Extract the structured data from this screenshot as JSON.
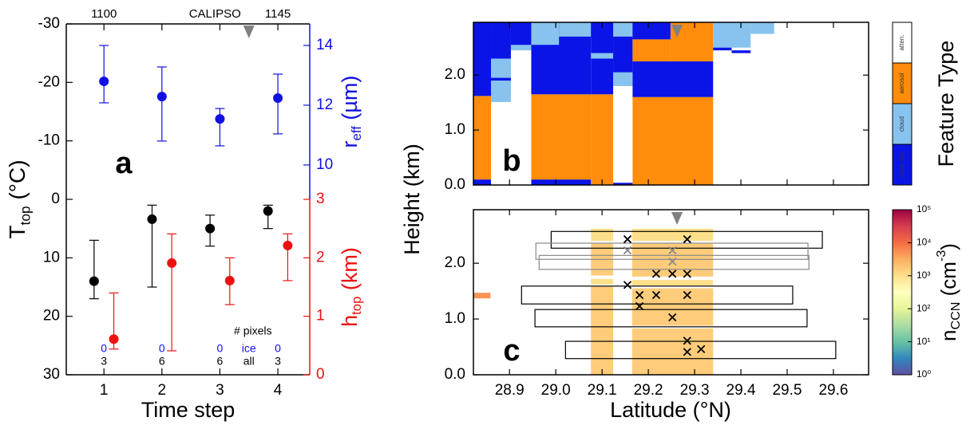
{
  "chart_data": [
    {
      "type": "errorbar",
      "label": "a",
      "xlabel": "Time step",
      "xlim": [
        0.35,
        4.55
      ],
      "xticks": [
        1,
        2,
        3,
        4
      ],
      "ylabel": [
        {
          "text": "T"
        },
        {
          "text": "top",
          "sub": true
        },
        {
          "text": " (°C)"
        }
      ],
      "ylim": [
        -30,
        30
      ],
      "yticks": [
        -30,
        -20,
        -10,
        0,
        10,
        20,
        30
      ],
      "y_inverted": true,
      "y2label": [
        {
          "text": "r"
        },
        {
          "text": "eff",
          "sub": true
        },
        {
          "text": " (µm)"
        }
      ],
      "y2lim": [
        8.85,
        14.72
      ],
      "y2ticks": [
        10,
        12,
        14
      ],
      "y2color": "#1010e0",
      "y3label": [
        {
          "text": "h"
        },
        {
          "text": "top",
          "sub": true
        },
        {
          "text": " (km)"
        }
      ],
      "y3lim": [
        0,
        3
      ],
      "y3ticks": [
        0,
        1,
        2,
        3
      ],
      "y3color": "#ee1111",
      "series": [
        {
          "axis": "y",
          "color": "#000000",
          "x": [
            0.83,
            1.83,
            2.83,
            3.83
          ],
          "values": [
            14,
            3.4,
            5,
            2
          ],
          "min": [
            7,
            1,
            2.7,
            1
          ],
          "max": [
            17,
            15,
            8,
            5
          ]
        },
        {
          "axis": "y2",
          "color": "#1010e0",
          "x": [
            1,
            2,
            3,
            4
          ],
          "values": [
            12.8,
            12.29,
            11.54,
            12.24
          ],
          "min": [
            12.08,
            10.8,
            10.64,
            11.04
          ],
          "max": [
            14.0,
            13.28,
            11.89,
            13.04
          ]
        },
        {
          "axis": "y3",
          "color": "#ee1111",
          "x": [
            1.17,
            2.17,
            3.17,
            4.17
          ],
          "values": [
            0.61,
            1.91,
            1.61,
            2.21
          ],
          "min": [
            0.44,
            0.41,
            1.2,
            1.61
          ],
          "max": [
            1.4,
            2.41,
            2.0,
            2.41
          ]
        }
      ],
      "top_labels": [
        {
          "text": "1100",
          "x": 1
        },
        {
          "text": "1145",
          "x": 4
        }
      ],
      "overpass": {
        "text": "CALIPSO",
        "x": 3.5
      },
      "pixel_counts": {
        "title": "# pixels",
        "ice_label": "ice",
        "all_label": "all",
        "ice": [
          0,
          0,
          0,
          0
        ],
        "all": [
          3,
          6,
          6,
          3
        ],
        "x": [
          1,
          2,
          3,
          4
        ],
        "label_x": 3.5
      }
    },
    {
      "type": "feature_mask",
      "label": "b",
      "ylabel": "Height (km)",
      "xlim": [
        28.822,
        29.676
      ],
      "ylim": [
        0,
        2.96
      ],
      "yticks": [
        {
          "value": 0,
          "label": "0.0"
        },
        {
          "value": 1,
          "label": "1.0"
        },
        {
          "value": 2,
          "label": "2.0"
        }
      ],
      "overpass_lat": 29.262,
      "feature_types": [
        {
          "name": "clear sky",
          "color": "#0a14e6"
        },
        {
          "name": "cloud",
          "color": "#87c3ee"
        },
        {
          "name": "aerosol",
          "color": "#ff8c0a"
        },
        {
          "name": "atten.",
          "color": "#ffffff"
        }
      ],
      "colorbar_title": "Feature Type",
      "cells": [
        {
          "lat": [
            28.822,
            28.86
          ],
          "h": [
            0,
            0.1
          ],
          "type": 0
        },
        {
          "lat": [
            28.822,
            28.86
          ],
          "h": [
            0.1,
            1.62
          ],
          "type": 2
        },
        {
          "lat": [
            28.822,
            28.86
          ],
          "h": [
            1.62,
            2.96
          ],
          "type": 0
        },
        {
          "lat": [
            28.86,
            28.903
          ],
          "h": [
            1.51,
            2.3
          ],
          "type": 1
        },
        {
          "lat": [
            28.86,
            28.903
          ],
          "h": [
            2.3,
            2.96
          ],
          "type": 0
        },
        {
          "lat": [
            28.86,
            28.903
          ],
          "h": [
            1.9,
            1.95
          ],
          "type": 0
        },
        {
          "lat": [
            28.903,
            28.947
          ],
          "h": [
            2.5,
            2.96
          ],
          "type": 0
        },
        {
          "lat": [
            28.903,
            28.947
          ],
          "h": [
            2.45,
            2.55
          ],
          "type": 1
        },
        {
          "lat": [
            28.947,
            29.076
          ],
          "h": [
            0,
            0.1
          ],
          "type": 0
        },
        {
          "lat": [
            28.947,
            29.076
          ],
          "h": [
            0.1,
            1.65
          ],
          "type": 2
        },
        {
          "lat": [
            28.947,
            29.076
          ],
          "h": [
            1.65,
            2.96
          ],
          "type": 0
        },
        {
          "lat": [
            28.947,
            29.007
          ],
          "h": [
            2.55,
            2.96
          ],
          "type": 1
        },
        {
          "lat": [
            29.007,
            29.076
          ],
          "h": [
            2.7,
            2.96
          ],
          "type": 1
        },
        {
          "lat": [
            29.076,
            29.124
          ],
          "h": [
            0,
            1.65
          ],
          "type": 2
        },
        {
          "lat": [
            29.076,
            29.124
          ],
          "h": [
            1.65,
            2.96
          ],
          "type": 0
        },
        {
          "lat": [
            29.076,
            29.124
          ],
          "h": [
            2.3,
            2.4
          ],
          "type": 1
        },
        {
          "lat": [
            29.124,
            29.166
          ],
          "h": [
            0,
            0.04
          ],
          "type": 0
        },
        {
          "lat": [
            29.124,
            29.166
          ],
          "h": [
            1.8,
            2.05
          ],
          "type": 1
        },
        {
          "lat": [
            29.124,
            29.166
          ],
          "h": [
            2.05,
            2.96
          ],
          "type": 0
        },
        {
          "lat": [
            29.124,
            29.166
          ],
          "h": [
            2.7,
            2.96
          ],
          "type": 1
        },
        {
          "lat": [
            29.166,
            29.34
          ],
          "h": [
            0,
            1.6
          ],
          "type": 2
        },
        {
          "lat": [
            29.166,
            29.34
          ],
          "h": [
            1.6,
            2.25
          ],
          "type": 0
        },
        {
          "lat": [
            29.166,
            29.248
          ],
          "h": [
            2.25,
            2.65
          ],
          "type": 2
        },
        {
          "lat": [
            29.166,
            29.248
          ],
          "h": [
            2.65,
            2.96
          ],
          "type": 0
        },
        {
          "lat": [
            29.248,
            29.34
          ],
          "h": [
            2.25,
            2.96
          ],
          "type": 2
        },
        {
          "lat": [
            29.34,
            29.421
          ],
          "h": [
            2.5,
            2.96
          ],
          "type": 1
        },
        {
          "lat": [
            29.421,
            29.472
          ],
          "h": [
            2.75,
            2.96
          ],
          "type": 1
        },
        {
          "lat": [
            29.34,
            29.38
          ],
          "h": [
            2.45,
            2.5
          ],
          "type": 0
        },
        {
          "lat": [
            29.38,
            29.421
          ],
          "h": [
            2.4,
            2.45
          ],
          "type": 0
        }
      ]
    },
    {
      "type": "ccn_profile",
      "label": "c",
      "xlabel": "Latitude (°N)",
      "xlim": [
        28.822,
        29.676
      ],
      "xticks": [
        28.9,
        {
          "value": 29,
          "label": "29.0"
        },
        29.1,
        29.2,
        29.3,
        29.4,
        29.5,
        29.6
      ],
      "ylim": [
        0,
        2.96
      ],
      "yticks": [
        {
          "value": 0,
          "label": "0.0"
        },
        {
          "value": 1,
          "label": "1.0"
        },
        {
          "value": 2,
          "label": "2.0"
        }
      ],
      "overpass_lat": 29.262,
      "colorbar_label": [
        {
          "text": "n"
        },
        {
          "text": "CCN",
          "sub": true
        },
        {
          "text": " (cm"
        },
        {
          "text": "-3",
          "sup": true
        },
        {
          "text": ")"
        }
      ],
      "clim": [
        1,
        100000
      ],
      "log": true,
      "cticks": [
        {
          "value": 1,
          "label": "10⁰"
        },
        {
          "value": 10,
          "label": "10¹"
        },
        {
          "value": 100,
          "label": "10²"
        },
        {
          "value": 1000,
          "label": "10³"
        },
        {
          "value": 10000,
          "label": "10⁴"
        },
        {
          "value": 100000,
          "label": "10⁵"
        }
      ],
      "colormap": [
        "#5e4fa2",
        "#3288bd",
        "#66c2a5",
        "#abdda4",
        "#e6f598",
        "#ffffbf",
        "#fee08b",
        "#fdae61",
        "#f46d43",
        "#d53e4f",
        "#9e0142"
      ],
      "cells": [
        {
          "lat": [
            28.822,
            28.859
          ],
          "h": [
            1.37,
            1.47
          ],
          "value": 5000
        },
        {
          "lat": [
            29.076,
            29.124
          ],
          "h": [
            0,
            1.58
          ],
          "value": 1600
        },
        {
          "lat": [
            29.076,
            29.124
          ],
          "h": [
            1.62,
            1.72
          ],
          "value": 1000
        },
        {
          "lat": [
            29.076,
            29.124
          ],
          "h": [
            1.78,
            2.35
          ],
          "value": 1600
        },
        {
          "lat": [
            29.076,
            29.124
          ],
          "h": [
            2.4,
            2.62
          ],
          "value": 1000
        },
        {
          "lat": [
            29.165,
            29.34
          ],
          "h": [
            0,
            0.83
          ],
          "value": 1600
        },
        {
          "lat": [
            29.165,
            29.34
          ],
          "h": [
            0.88,
            1.55
          ],
          "value": 1600
        },
        {
          "lat": [
            29.165,
            29.34
          ],
          "h": [
            1.6,
            1.7
          ],
          "value": 1000
        },
        {
          "lat": [
            29.165,
            29.34
          ],
          "h": [
            1.76,
            2.35
          ],
          "value": 1600
        },
        {
          "lat": [
            29.165,
            29.34
          ],
          "h": [
            2.4,
            2.62
          ],
          "value": 1000
        }
      ],
      "boxes": [
        {
          "lat": [
            28.99,
            29.576
          ],
          "h": [
            2.27,
            2.57
          ],
          "color": "#000000"
        },
        {
          "lat": [
            28.957,
            29.545
          ],
          "h": [
            2.07,
            2.36
          ],
          "color": "#888888"
        },
        {
          "lat": [
            28.964,
            29.547
          ],
          "h": [
            1.89,
            2.14
          ],
          "color": "#888888"
        },
        {
          "lat": [
            28.926,
            29.512
          ],
          "h": [
            1.27,
            1.59
          ],
          "color": "#000000"
        },
        {
          "lat": [
            28.955,
            29.543
          ],
          "h": [
            0.86,
            1.17
          ],
          "color": "#000000"
        },
        {
          "lat": [
            29.021,
            29.605
          ],
          "h": [
            0.29,
            0.6
          ],
          "color": "#000000"
        }
      ],
      "crosses": [
        {
          "color": "#000000",
          "lat": [
            29.155,
            29.284,
            29.217,
            29.252,
            29.284,
            29.155,
            29.181,
            29.217,
            29.284,
            29.181,
            29.252,
            29.284,
            29.314,
            29.284
          ],
          "h": [
            2.43,
            2.43,
            1.81,
            1.81,
            1.81,
            1.61,
            1.43,
            1.43,
            1.43,
            1.23,
            1.03,
            0.61,
            0.46,
            0.41
          ]
        },
        {
          "color": "#888888",
          "lat": [
            29.155,
            29.252,
            29.252
          ],
          "h": [
            2.23,
            2.23,
            2.03
          ]
        }
      ]
    }
  ]
}
